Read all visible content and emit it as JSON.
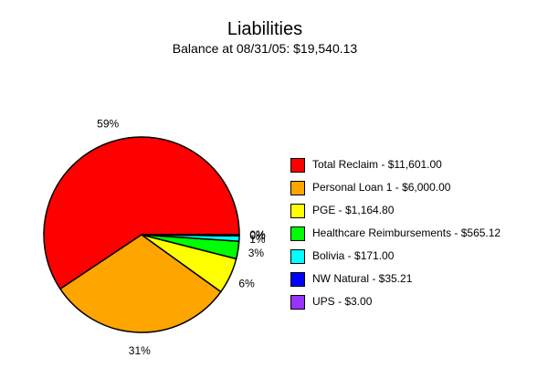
{
  "header": {
    "title": "Liabilities",
    "subtitle": "Balance at 08/31/05: $19,540.13"
  },
  "chart_data": {
    "type": "pie",
    "title": "Liabilities",
    "subtitle": "Balance at 08/31/05: $19,540.13",
    "legend_position": "right",
    "slices": [
      {
        "label": "Total Reclaim",
        "legend_label": "Total Reclaim - $11,601.00",
        "value": 11601.0,
        "pct_label": "59%",
        "color": "#ff0000"
      },
      {
        "label": "Personal Loan 1",
        "legend_label": "Personal Loan 1 - $6,000.00",
        "value": 6000.0,
        "pct_label": "31%",
        "color": "#ffa500"
      },
      {
        "label": "PGE",
        "legend_label": "PGE - $1,164.80",
        "value": 1164.8,
        "pct_label": "6%",
        "color": "#ffff00"
      },
      {
        "label": "Healthcare Reimbursements",
        "legend_label": "Healthcare Reimbursements - $565.12",
        "value": 565.12,
        "pct_label": "3%",
        "color": "#00ff00"
      },
      {
        "label": "Bolivia",
        "legend_label": "Bolivia - $171.00",
        "value": 171.0,
        "pct_label": "1%",
        "color": "#00ffff"
      },
      {
        "label": "NW Natural",
        "legend_label": "NW Natural - $35.21",
        "value": 35.21,
        "pct_label": "0%",
        "color": "#0000ff"
      },
      {
        "label": "UPS",
        "legend_label": "UPS - $3.00",
        "value": 3.0,
        "pct_label": "0%",
        "color": "#9933ff"
      }
    ]
  }
}
